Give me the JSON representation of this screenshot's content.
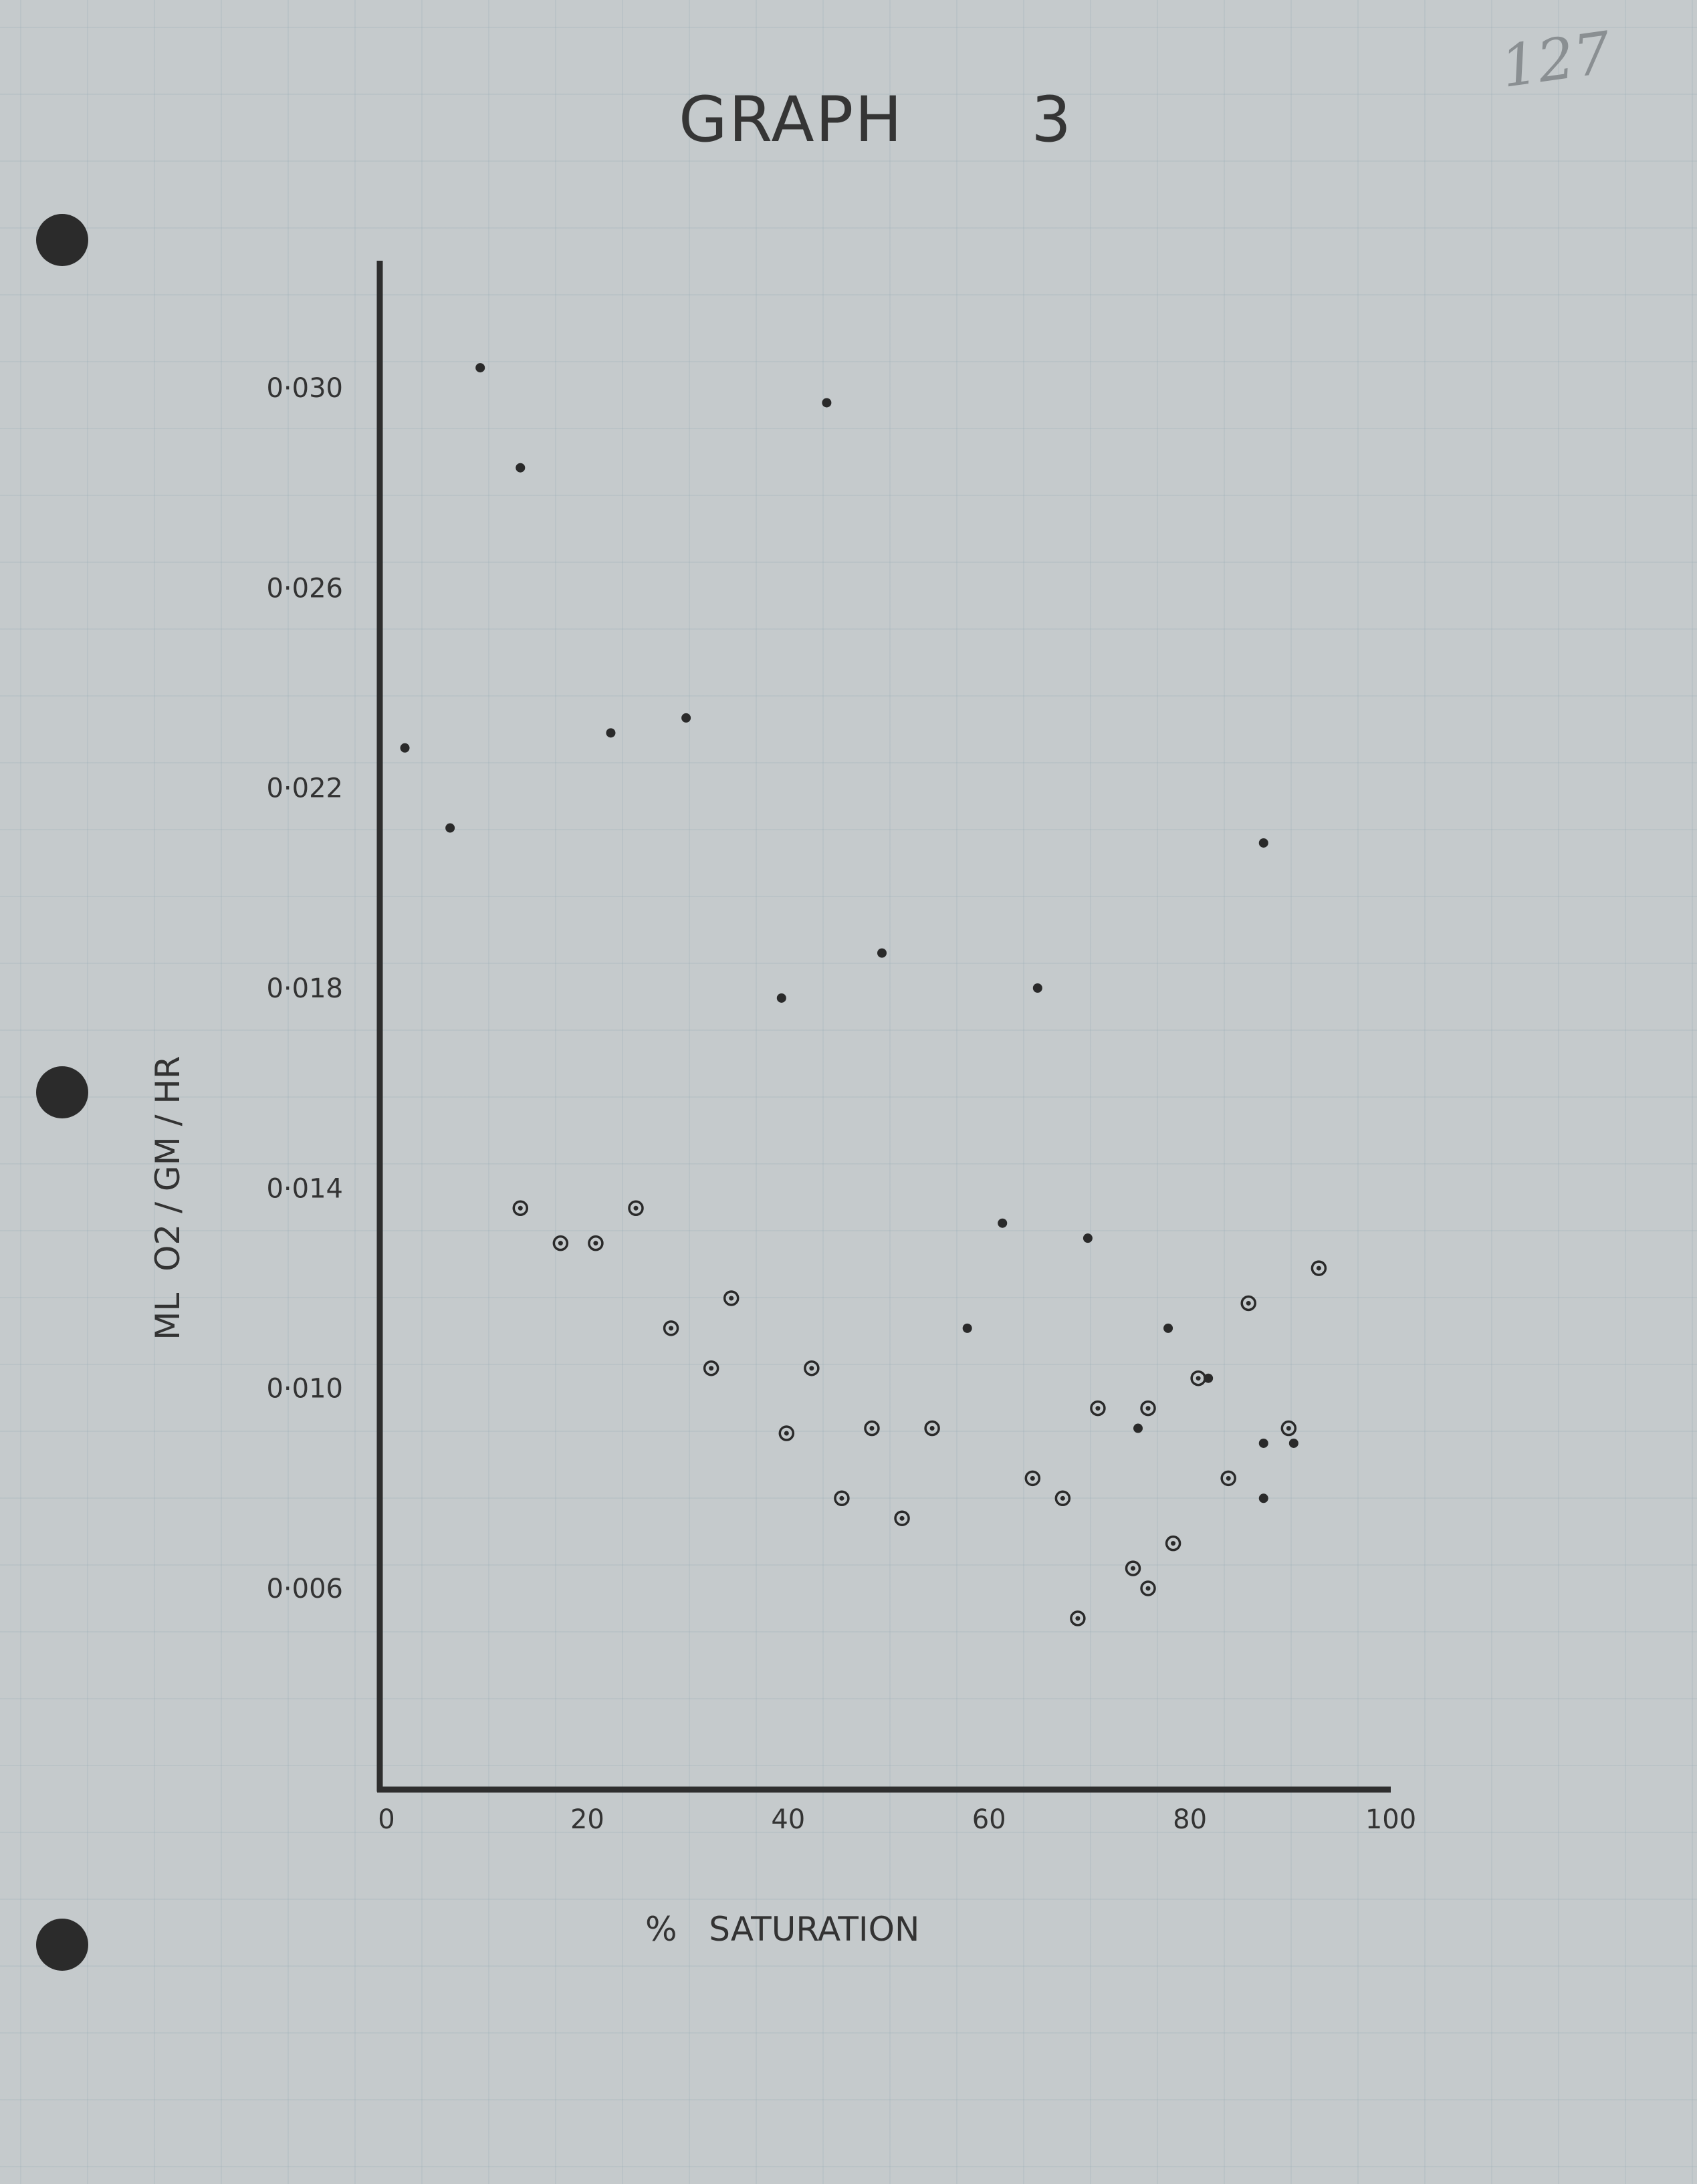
{
  "page_number": "127",
  "chart_data": {
    "type": "scatter",
    "title": "GRAPH      3",
    "xlabel": "%   SATURATION",
    "ylabel": "ML  O2 / GM / HR",
    "xlim": [
      0,
      100
    ],
    "ylim": [
      0.002,
      0.033
    ],
    "x_ticks": [
      0,
      20,
      40,
      60,
      80,
      100
    ],
    "y_ticks": [
      0.006,
      0.01,
      0.014,
      0.018,
      0.022,
      0.026,
      0.03
    ],
    "x_tick_labels": [
      "0",
      "20",
      "40",
      "60",
      "80",
      "100"
    ],
    "y_tick_labels": [
      "0·006",
      "0·010",
      "0·014",
      "0·018",
      "0·022",
      "0·026",
      "0·030"
    ],
    "grid": false,
    "series": [
      {
        "marker": "dot",
        "points": [
          [
            2.5,
            0.0228
          ],
          [
            7,
            0.0212
          ],
          [
            10,
            0.0304
          ],
          [
            14,
            0.0284
          ],
          [
            23,
            0.0231
          ],
          [
            30.5,
            0.0234
          ],
          [
            40,
            0.0178
          ],
          [
            44.5,
            0.0297
          ],
          [
            50,
            0.0187
          ],
          [
            58.5,
            0.0112
          ],
          [
            62,
            0.0133
          ],
          [
            65.5,
            0.018
          ],
          [
            70.5,
            0.013
          ],
          [
            78.5,
            0.0112
          ],
          [
            82.5,
            0.0102
          ],
          [
            88,
            0.0209
          ],
          [
            88,
            0.0089
          ],
          [
            88,
            0.0078
          ],
          [
            91,
            0.0089
          ],
          [
            75.5,
            0.0092
          ]
        ]
      },
      {
        "marker": "circled-dot",
        "points": [
          [
            14,
            0.0136
          ],
          [
            18,
            0.0129
          ],
          [
            21.5,
            0.0129
          ],
          [
            25.5,
            0.0136
          ],
          [
            29,
            0.0112
          ],
          [
            33,
            0.0104
          ],
          [
            35,
            0.0118
          ],
          [
            40.5,
            0.0091
          ],
          [
            43,
            0.0104
          ],
          [
            46,
            0.0078
          ],
          [
            49,
            0.0092
          ],
          [
            52,
            0.0074
          ],
          [
            55,
            0.0092
          ],
          [
            65,
            0.0082
          ],
          [
            68,
            0.0078
          ],
          [
            69.5,
            0.0054
          ],
          [
            71.5,
            0.0096
          ],
          [
            75,
            0.0064
          ],
          [
            76.5,
            0.006
          ],
          [
            76.5,
            0.0096
          ],
          [
            79,
            0.0069
          ],
          [
            81.5,
            0.0102
          ],
          [
            84.5,
            0.0082
          ],
          [
            86.5,
            0.0117
          ],
          [
            90.5,
            0.0092
          ],
          [
            93.5,
            0.0124
          ]
        ]
      }
    ]
  }
}
